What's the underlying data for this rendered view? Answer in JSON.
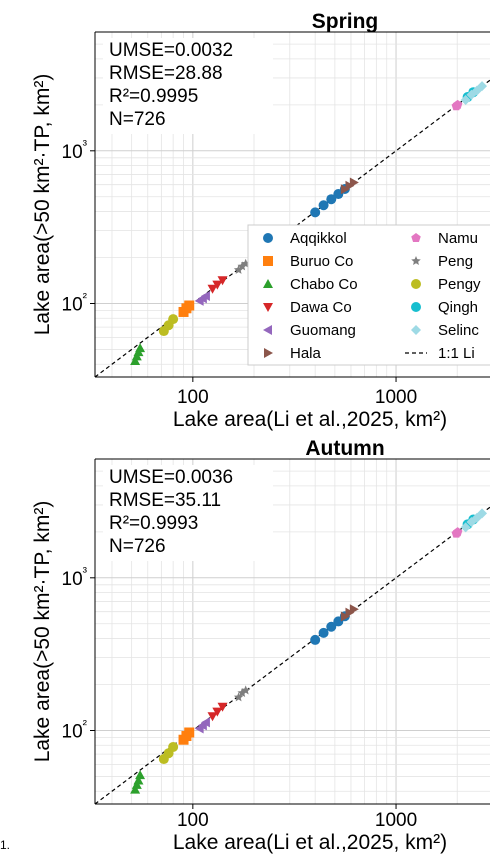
{
  "stray_text": "1.",
  "chart_data": [
    {
      "type": "scatter",
      "title": "Spring",
      "xlabel": "Lake area(Li et al.,2025, km²)",
      "ylabel": "Lake area(>50 km²·TP, km²)",
      "xscale": "log",
      "yscale": "log",
      "xlim": [
        33,
        2900
      ],
      "ylim": [
        33,
        6000
      ],
      "x_ticks": [
        "100",
        "1000"
      ],
      "y_ticks": [
        "10²",
        "10³"
      ],
      "grid": true,
      "stats": [
        "UMSE=0.0032",
        "RMSE=28.88",
        "R²=0.9995",
        "N=726"
      ],
      "legend_placement": "right",
      "series": [
        {
          "name": "Aqqikkol",
          "color": "#1f77b4",
          "marker": "circle",
          "x": [
            400,
            440,
            480,
            520,
            560
          ],
          "y": [
            395,
            440,
            482,
            521,
            562
          ]
        },
        {
          "name": "Buruo Co",
          "color": "#ff7f0e",
          "marker": "square",
          "x": [
            90,
            93,
            96
          ],
          "y": [
            88,
            93,
            97
          ]
        },
        {
          "name": "Chabo Co",
          "color": "#2ca02c",
          "marker": "triangle-up",
          "x": [
            52,
            53,
            54,
            55
          ],
          "y": [
            42,
            45,
            48,
            51
          ]
        },
        {
          "name": "Dawa Co",
          "color": "#d62728",
          "marker": "triangle-down",
          "x": [
            125,
            132,
            140
          ],
          "y": [
            125,
            133,
            142
          ]
        },
        {
          "name": "Guomang",
          "color": "#9467bd",
          "marker": "triangle-left",
          "x": [
            108,
            112,
            116
          ],
          "y": [
            104,
            108,
            112
          ]
        },
        {
          "name": "Hala",
          "color": "#8c564b",
          "marker": "triangle-right",
          "x": [
            560,
            590,
            620
          ],
          "y": [
            560,
            590,
            620
          ]
        },
        {
          "name": "Namu",
          "color": "#e377c2",
          "marker": "pentagon",
          "x": [
            1980,
            2010
          ],
          "y": [
            1960,
            2000
          ]
        },
        {
          "name": "Peng",
          "color": "#7f7f7f",
          "marker": "star",
          "x": [
            168,
            175,
            182
          ],
          "y": [
            166,
            175,
            182
          ]
        },
        {
          "name": "Pengy",
          "color": "#bcbd22",
          "marker": "circle",
          "x": [
            72,
            76,
            80
          ],
          "y": [
            66,
            72,
            79
          ]
        },
        {
          "name": "Qingh",
          "color": "#17becf",
          "marker": "circle",
          "x": [
            2250,
            2400
          ],
          "y": [
            2250,
            2420
          ]
        },
        {
          "name": "Selinc",
          "color": "#9edae5",
          "marker": "diamond",
          "x": [
            2200,
            2350,
            2500,
            2650
          ],
          "y": [
            2150,
            2330,
            2480,
            2650
          ]
        },
        {
          "name": "1:1 Li",
          "color": "#000000",
          "marker": "dashed-line"
        }
      ]
    },
    {
      "type": "scatter",
      "title": "Autumn",
      "xlabel": "Lake area(Li et al.,2025, km²)",
      "ylabel": "Lake area(>50 km²·TP, km²)",
      "xscale": "log",
      "yscale": "log",
      "xlim": [
        33,
        2900
      ],
      "ylim": [
        33,
        6000
      ],
      "x_ticks": [
        "100",
        "1000"
      ],
      "y_ticks": [
        "10²",
        "10³"
      ],
      "grid": true,
      "stats": [
        "UMSE=0.0036",
        "RMSE=35.11",
        "R²=0.9993",
        "N=726"
      ],
      "legend_placement": "none",
      "series": [
        {
          "name": "Aqqikkol",
          "color": "#1f77b4",
          "marker": "circle",
          "x": [
            400,
            440,
            480,
            520,
            560
          ],
          "y": [
            392,
            436,
            478,
            518,
            560
          ]
        },
        {
          "name": "Buruo Co",
          "color": "#ff7f0e",
          "marker": "square",
          "x": [
            90,
            93,
            96
          ],
          "y": [
            87,
            92,
            97
          ]
        },
        {
          "name": "Chabo Co",
          "color": "#2ca02c",
          "marker": "triangle-up",
          "x": [
            52,
            53,
            54,
            55
          ],
          "y": [
            41,
            44,
            47,
            51
          ]
        },
        {
          "name": "Dawa Co",
          "color": "#d62728",
          "marker": "triangle-down",
          "x": [
            125,
            132,
            140
          ],
          "y": [
            124,
            133,
            143
          ]
        },
        {
          "name": "Guomang",
          "color": "#9467bd",
          "marker": "triangle-left",
          "x": [
            108,
            112,
            116
          ],
          "y": [
            103,
            108,
            113
          ]
        },
        {
          "name": "Hala",
          "color": "#8c564b",
          "marker": "triangle-right",
          "x": [
            560,
            590,
            620
          ],
          "y": [
            558,
            592,
            622
          ]
        },
        {
          "name": "Namu",
          "color": "#e377c2",
          "marker": "pentagon",
          "x": [
            1980,
            2010
          ],
          "y": [
            1950,
            1990
          ]
        },
        {
          "name": "Peng",
          "color": "#7f7f7f",
          "marker": "star",
          "x": [
            168,
            175,
            182
          ],
          "y": [
            165,
            176,
            183
          ]
        },
        {
          "name": "Pengy",
          "color": "#bcbd22",
          "marker": "circle",
          "x": [
            72,
            76,
            80
          ],
          "y": [
            65,
            71,
            78
          ]
        },
        {
          "name": "Qingh",
          "color": "#17becf",
          "marker": "circle",
          "x": [
            2250,
            2400
          ],
          "y": [
            2240,
            2410
          ]
        },
        {
          "name": "Selinc",
          "color": "#9edae5",
          "marker": "diamond",
          "x": [
            2200,
            2350,
            2500,
            2650
          ],
          "y": [
            2140,
            2320,
            2470,
            2640
          ]
        }
      ]
    }
  ]
}
